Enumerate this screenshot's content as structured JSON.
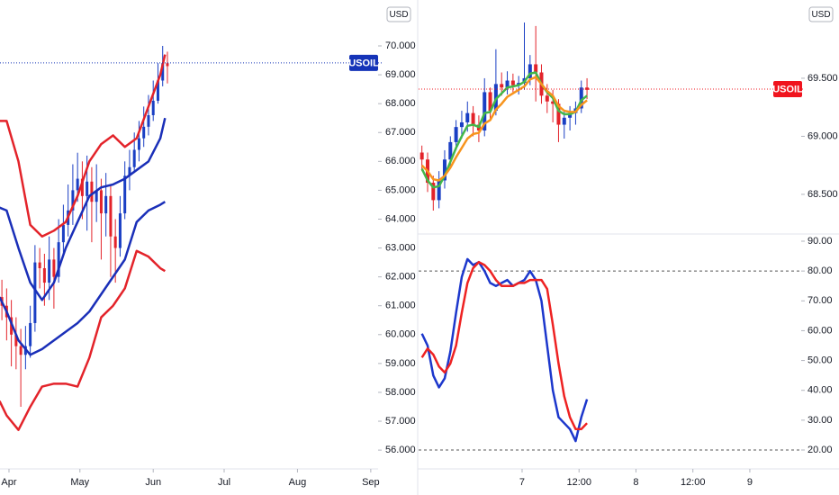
{
  "chart_data": [
    {
      "type": "candlestick",
      "currency": "USD",
      "badge": {
        "label": "USOIL",
        "value": 69.41,
        "color": "#1534b8"
      },
      "ylim": [
        55.38,
        71.59
      ],
      "yticks": [
        {
          "value": 56,
          "label": "56.000"
        },
        {
          "value": 57,
          "label": "57.000"
        },
        {
          "value": 58,
          "label": "58.000"
        },
        {
          "value": 59,
          "label": "59.000"
        },
        {
          "value": 60,
          "label": "60.000"
        },
        {
          "value": 61,
          "label": "61.000"
        },
        {
          "value": 62,
          "label": "62.000"
        },
        {
          "value": 63,
          "label": "63.000"
        },
        {
          "value": 64,
          "label": "64.000"
        },
        {
          "value": 65,
          "label": "65.000"
        },
        {
          "value": 66,
          "label": "66.000"
        },
        {
          "value": 67,
          "label": "67.000"
        },
        {
          "value": 68,
          "label": "68.000"
        },
        {
          "value": 69,
          "label": "69.000"
        },
        {
          "value": 70,
          "label": "70.000"
        }
      ],
      "xlim": [
        87.2,
        247.1
      ],
      "xticks": [
        {
          "value": 91,
          "label": "Apr"
        },
        {
          "value": 121,
          "label": "May"
        },
        {
          "value": 152,
          "label": "Jun"
        },
        {
          "value": 182,
          "label": "Jul"
        },
        {
          "value": 213,
          "label": "Aug"
        },
        {
          "value": 244,
          "label": "Sep"
        }
      ],
      "up_color": "#1a3fc4",
      "down_color": "#e3232a",
      "candles": {
        "x": [
          88,
          90,
          92,
          94,
          96,
          98,
          100,
          102,
          104,
          106,
          108,
          110,
          112,
          114,
          116,
          118,
          120,
          122,
          124,
          126,
          128,
          130,
          132,
          134,
          136,
          138,
          140,
          142,
          144,
          146,
          148,
          150,
          152,
          154,
          156,
          158
        ],
        "open": [
          61.3,
          61.0,
          60.6,
          60.0,
          59.6,
          59.3,
          59.6,
          60.4,
          62.5,
          62.3,
          61.8,
          62.6,
          62.0,
          63.2,
          63.8,
          64.3,
          65.0,
          65.4,
          64.8,
          65.3,
          64.6,
          65.0,
          64.2,
          64.8,
          63.4,
          63.0,
          64.2,
          65.5,
          65.8,
          66.4,
          66.8,
          67.2,
          67.6,
          68.1,
          68.8,
          69.4
        ],
        "high": [
          61.9,
          61.6,
          61.2,
          60.6,
          60.2,
          60.3,
          61.0,
          63.1,
          63.0,
          62.8,
          63.4,
          63.0,
          64.0,
          64.5,
          65.2,
          65.9,
          66.3,
          66.0,
          66.2,
          65.8,
          65.9,
          65.4,
          65.6,
          65.2,
          64.0,
          64.8,
          66.0,
          66.4,
          67.0,
          67.4,
          67.9,
          68.3,
          68.8,
          69.4,
          70.0,
          69.8
        ],
        "low": [
          60.5,
          59.8,
          58.9,
          58.8,
          57.5,
          58.8,
          59.2,
          60.1,
          61.6,
          61.0,
          61.2,
          60.9,
          61.8,
          62.8,
          63.4,
          63.8,
          64.6,
          64.0,
          63.6,
          63.2,
          63.9,
          62.6,
          63.4,
          62.0,
          61.8,
          62.7,
          64.0,
          65.0,
          65.6,
          66.0,
          66.5,
          66.9,
          67.4,
          68.0,
          68.6,
          68.7
        ],
        "close": [
          61.0,
          60.6,
          60.0,
          59.6,
          59.3,
          59.6,
          60.4,
          62.5,
          62.3,
          61.8,
          62.6,
          62.0,
          63.2,
          63.8,
          64.3,
          65.0,
          65.4,
          64.8,
          65.3,
          64.6,
          65.0,
          64.2,
          64.8,
          63.4,
          63.0,
          64.2,
          65.5,
          65.8,
          66.4,
          66.8,
          67.2,
          67.6,
          68.1,
          68.8,
          69.4,
          69.3
        ]
      },
      "lines": [
        {
          "color": "#e3232a",
          "x": [
            87,
            90,
            95,
            100,
            105,
            110,
            115,
            120,
            125,
            130,
            135,
            140,
            145,
            150,
            155,
            157
          ],
          "values": [
            67.4,
            67.4,
            66.0,
            63.8,
            63.4,
            63.6,
            63.9,
            64.8,
            66.0,
            66.6,
            66.9,
            66.5,
            66.8,
            67.9,
            69.0,
            69.7
          ]
        },
        {
          "color": "#1a2fb8",
          "x": [
            87,
            90,
            95,
            100,
            105,
            110,
            115,
            120,
            125,
            130,
            135,
            140,
            145,
            150,
            155,
            157
          ],
          "values": [
            64.4,
            64.3,
            63.0,
            61.8,
            61.2,
            61.8,
            63.0,
            63.9,
            64.8,
            65.1,
            65.2,
            65.4,
            65.7,
            66.0,
            66.8,
            67.5
          ]
        },
        {
          "color": "#1a2fb8",
          "x": [
            87,
            90,
            95,
            100,
            105,
            110,
            115,
            120,
            125,
            130,
            135,
            140,
            145,
            150,
            155,
            157
          ],
          "values": [
            61.3,
            60.8,
            59.8,
            59.3,
            59.5,
            59.8,
            60.1,
            60.4,
            60.8,
            61.4,
            62.0,
            62.6,
            63.9,
            64.3,
            64.5,
            64.6
          ]
        },
        {
          "color": "#e3232a",
          "x": [
            87,
            90,
            95,
            100,
            105,
            110,
            115,
            120,
            125,
            130,
            135,
            140,
            145,
            150,
            155,
            157
          ],
          "values": [
            57.7,
            57.2,
            56.7,
            57.5,
            58.2,
            58.3,
            58.3,
            58.2,
            59.2,
            60.6,
            61.0,
            61.6,
            62.9,
            62.7,
            62.3,
            62.2
          ]
        }
      ]
    },
    {
      "type": "candlestick",
      "currency": "USD",
      "badge": {
        "label": "USOIL",
        "value": 69.407,
        "color": "#f0141e"
      },
      "ylim": [
        68.174,
        70.174
      ],
      "yticks": [
        {
          "value": 68.5,
          "label": "68.500"
        },
        {
          "value": 69,
          "label": "69.000"
        },
        {
          "value": 69.5,
          "label": "69.500"
        }
      ],
      "xlim": [
        6.091,
        9.451
      ],
      "up_color": "#1a3fc4",
      "down_color": "#e3232a",
      "candles": {
        "x": [
          6.12,
          6.17,
          6.22,
          6.27,
          6.32,
          6.37,
          6.42,
          6.47,
          6.52,
          6.57,
          6.62,
          6.67,
          6.72,
          6.77,
          6.82,
          6.87,
          6.92,
          6.97,
          7.02,
          7.07,
          7.12,
          7.17,
          7.22,
          7.27,
          7.32,
          7.37,
          7.42,
          7.47,
          7.52,
          7.57
        ],
        "open": [
          68.86,
          68.8,
          68.6,
          68.45,
          68.62,
          68.8,
          68.95,
          69.08,
          69.12,
          69.2,
          69.1,
          69.05,
          69.38,
          69.22,
          69.45,
          69.42,
          69.48,
          69.44,
          69.46,
          69.5,
          69.62,
          69.55,
          69.35,
          69.3,
          69.28,
          69.1,
          69.16,
          69.2,
          69.24,
          69.42
        ],
        "high": [
          68.92,
          68.86,
          68.66,
          68.7,
          68.88,
          69.0,
          69.14,
          69.22,
          69.3,
          69.26,
          69.18,
          69.5,
          69.42,
          69.75,
          69.55,
          69.56,
          69.54,
          69.52,
          69.98,
          69.7,
          69.95,
          69.62,
          69.45,
          69.4,
          69.32,
          69.22,
          69.26,
          69.3,
          69.48,
          69.5
        ],
        "low": [
          68.7,
          68.52,
          68.36,
          68.38,
          68.55,
          68.74,
          68.88,
          68.98,
          69.04,
          69.0,
          68.95,
          69.0,
          69.15,
          69.18,
          69.35,
          69.36,
          69.38,
          69.36,
          69.4,
          69.44,
          69.3,
          69.28,
          69.2,
          69.12,
          68.95,
          68.98,
          69.05,
          69.1,
          69.2,
          69.32
        ],
        "close": [
          68.8,
          68.6,
          68.45,
          68.62,
          68.8,
          68.95,
          69.08,
          69.12,
          69.2,
          69.1,
          69.05,
          69.38,
          69.22,
          69.45,
          69.42,
          69.48,
          69.44,
          69.46,
          69.5,
          69.62,
          69.55,
          69.35,
          69.3,
          69.28,
          69.1,
          69.16,
          69.2,
          69.24,
          69.42,
          69.4
        ]
      },
      "lines": [
        {
          "color": "#43b74a",
          "x": [
            6.12,
            6.17,
            6.22,
            6.27,
            6.32,
            6.37,
            6.42,
            6.47,
            6.52,
            6.57,
            6.62,
            6.67,
            6.72,
            6.77,
            6.82,
            6.87,
            6.92,
            6.97,
            7.02,
            7.07,
            7.12,
            7.17,
            7.22,
            7.27,
            7.32,
            7.37,
            7.42,
            7.47,
            7.52,
            7.57
          ],
          "values": [
            68.72,
            68.62,
            68.56,
            68.57,
            68.66,
            68.78,
            68.9,
            69.0,
            69.09,
            69.1,
            69.08,
            69.2,
            69.21,
            69.32,
            69.37,
            69.42,
            69.43,
            69.44,
            69.47,
            69.54,
            69.55,
            69.45,
            69.38,
            69.33,
            69.22,
            69.19,
            69.19,
            69.21,
            69.31,
            69.35
          ]
        },
        {
          "color": "#f7941d",
          "x": [
            6.12,
            6.17,
            6.22,
            6.27,
            6.32,
            6.37,
            6.42,
            6.47,
            6.52,
            6.57,
            6.62,
            6.67,
            6.72,
            6.77,
            6.82,
            6.87,
            6.92,
            6.97,
            7.02,
            7.07,
            7.12,
            7.17,
            7.22,
            7.27,
            7.32,
            7.37,
            7.42,
            7.47,
            7.52,
            7.57
          ],
          "values": [
            68.75,
            68.7,
            68.63,
            68.62,
            68.66,
            68.73,
            68.82,
            68.9,
            68.98,
            69.02,
            69.03,
            69.11,
            69.14,
            69.23,
            69.28,
            69.34,
            69.37,
            69.4,
            69.43,
            69.49,
            69.51,
            69.45,
            69.39,
            69.35,
            69.26,
            69.22,
            69.21,
            69.21,
            69.27,
            69.31
          ]
        }
      ]
    },
    {
      "type": "line",
      "ylim": [
        13.97,
        91.81
      ],
      "yticks": [
        {
          "value": 20,
          "label": "20.00"
        },
        {
          "value": 30,
          "label": "30.00"
        },
        {
          "value": 40,
          "label": "40.00"
        },
        {
          "value": 50,
          "label": "50.00"
        },
        {
          "value": 60,
          "label": "60.00"
        },
        {
          "value": 70,
          "label": "70.00"
        },
        {
          "value": 80,
          "label": "80.00"
        },
        {
          "value": 90,
          "label": "90.00"
        }
      ],
      "levels": [
        80,
        20
      ],
      "xlim": [
        6.091,
        9.451
      ],
      "xticks": [
        7,
        {
          "value": 7.5,
          "label": "12:00"
        },
        8,
        {
          "value": 8.5,
          "label": "12:00"
        },
        9
      ],
      "x": [
        6.12,
        6.17,
        6.22,
        6.27,
        6.32,
        6.37,
        6.42,
        6.47,
        6.52,
        6.57,
        6.62,
        6.67,
        6.72,
        6.77,
        6.82,
        6.87,
        6.92,
        6.97,
        7.02,
        7.07,
        7.12,
        7.17,
        7.22,
        7.27,
        7.32,
        7.37,
        7.42,
        7.47,
        7.52,
        7.57
      ],
      "series": [
        {
          "color": "#1c37cc",
          "values": [
            59,
            55,
            45,
            41,
            44,
            53,
            66,
            78,
            84,
            82,
            83,
            80,
            76,
            75,
            76,
            77,
            75,
            76,
            77,
            80,
            77,
            70,
            55,
            40,
            31,
            29,
            27,
            23,
            31,
            37
          ]
        },
        {
          "color": "#ee2222",
          "values": [
            51,
            54,
            52,
            48,
            46,
            49,
            55,
            66,
            76,
            81,
            83,
            82,
            80,
            77,
            75,
            75,
            75,
            76,
            76,
            77,
            77,
            77,
            74,
            62,
            49,
            38,
            31,
            27,
            27,
            29
          ]
        }
      ]
    }
  ]
}
